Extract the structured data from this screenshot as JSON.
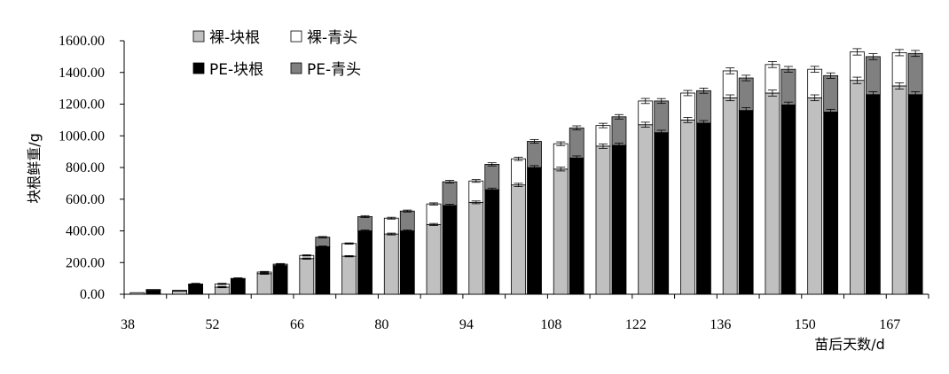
{
  "chart_data": {
    "type": "bar",
    "ylabel": "块根鲜重/g",
    "xlabel": "苗后天数/d",
    "ylim": [
      0,
      1600
    ],
    "yticks": [
      "0.00",
      "200.00",
      "400.00",
      "600.00",
      "800.00",
      "1000.00",
      "1200.00",
      "1400.00",
      "1600.00"
    ],
    "xtick_labels": [
      "38",
      "52",
      "66",
      "80",
      "94",
      "108",
      "122",
      "136",
      "150",
      "167"
    ],
    "days": [
      38,
      45,
      52,
      59,
      66,
      73,
      80,
      87,
      94,
      101,
      108,
      115,
      122,
      129,
      136,
      143,
      150,
      157,
      167
    ],
    "legend_position": "top-left",
    "grid": false,
    "colors": {
      "naked_root": "#c0c0c0",
      "naked_top": "#ffffff",
      "pe_root": "#000000",
      "pe_top": "#808080"
    },
    "legend": [
      {
        "key": "naked_root",
        "label": "裸-块根"
      },
      {
        "key": "naked_top",
        "label": "裸-青头"
      },
      {
        "key": "pe_root",
        "label": "PE-块根"
      },
      {
        "key": "pe_top",
        "label": "PE-青头"
      }
    ],
    "series": [
      {
        "key": "naked_root",
        "name": "裸-块根",
        "values": [
          10,
          20,
          45,
          130,
          225,
          240,
          380,
          440,
          580,
          690,
          790,
          935,
          1070,
          1100,
          1240,
          1270,
          1240,
          1350,
          1315
        ]
      },
      {
        "key": "naked_top",
        "name": "裸-青头",
        "values": [
          0,
          5,
          20,
          10,
          20,
          80,
          100,
          130,
          135,
          165,
          160,
          130,
          150,
          170,
          170,
          180,
          180,
          180,
          210
        ]
      },
      {
        "key": "pe_root",
        "name": "PE-块根",
        "values": [
          25,
          60,
          95,
          180,
          300,
          400,
          400,
          560,
          660,
          800,
          860,
          940,
          1020,
          1080,
          1160,
          1195,
          1150,
          1260,
          1260
        ]
      },
      {
        "key": "pe_top",
        "name": "PE-青头",
        "values": [
          5,
          5,
          5,
          10,
          60,
          90,
          125,
          150,
          160,
          165,
          190,
          180,
          200,
          205,
          205,
          225,
          230,
          240,
          260
        ]
      }
    ]
  }
}
